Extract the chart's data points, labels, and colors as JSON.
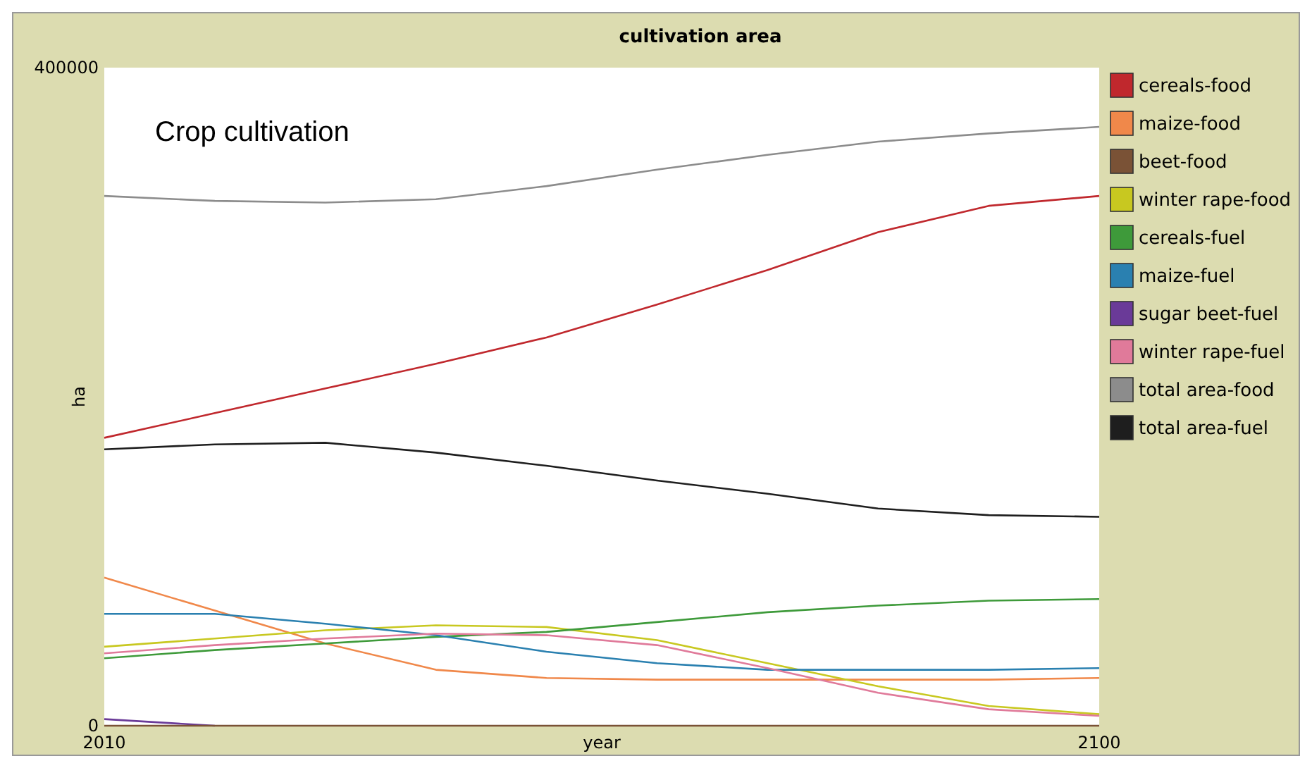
{
  "chart_data": {
    "type": "line",
    "title": "cultivation area",
    "xlabel": "year",
    "ylabel": "ha",
    "annotations": [
      "Crop cultivation"
    ],
    "x": [
      2010,
      2020,
      2030,
      2040,
      2050,
      2060,
      2070,
      2080,
      2090,
      2100
    ],
    "xlim": [
      2010,
      2100
    ],
    "xticks": [
      2010,
      2100
    ],
    "ylim": [
      0,
      400000
    ],
    "yticks": [
      0,
      400000
    ],
    "grid": false,
    "legend": "right",
    "marker": "none",
    "line_style": "solid",
    "series": [
      {
        "name": "cereals-food",
        "color": "#c0282d",
        "values": [
          175000,
          190000,
          205000,
          220000,
          236000,
          256000,
          277000,
          300000,
          316000,
          322000
        ]
      },
      {
        "name": "maize-food",
        "color": "#f0884a",
        "values": [
          90000,
          70000,
          50000,
          34000,
          29000,
          28000,
          28000,
          28000,
          28000,
          29000
        ]
      },
      {
        "name": "beet-food",
        "color": "#7a5236",
        "values": [
          0,
          0,
          0,
          0,
          0,
          0,
          0,
          0,
          0,
          0
        ]
      },
      {
        "name": "winter rape-food",
        "color": "#c8c820",
        "values": [
          48000,
          53000,
          58000,
          61000,
          60000,
          52000,
          38000,
          24000,
          12000,
          7000
        ]
      },
      {
        "name": "cereals-fuel",
        "color": "#3e9a3a",
        "values": [
          41000,
          46000,
          50000,
          54000,
          57000,
          63000,
          69000,
          73000,
          76000,
          77000
        ]
      },
      {
        "name": "maize-fuel",
        "color": "#2a80b0",
        "values": [
          68000,
          68000,
          62000,
          55000,
          45000,
          38000,
          34000,
          34000,
          34000,
          35000
        ]
      },
      {
        "name": "sugar beet-fuel",
        "color": "#6a3a98",
        "values": [
          4000,
          0,
          null,
          null,
          null,
          null,
          null,
          null,
          null,
          null
        ]
      },
      {
        "name": "winter rape-fuel",
        "color": "#e07a9a",
        "values": [
          44000,
          49000,
          53000,
          56000,
          55000,
          49000,
          35000,
          20000,
          10000,
          6000
        ]
      },
      {
        "name": "total area-food",
        "color": "#8c8c8c",
        "values": [
          322000,
          319000,
          318000,
          320000,
          328000,
          338000,
          347000,
          355000,
          360000,
          364000
        ]
      },
      {
        "name": "total area-fuel",
        "color": "#1e1e1e",
        "values": [
          168000,
          171000,
          172000,
          166000,
          158000,
          149000,
          141000,
          132000,
          128000,
          127000
        ]
      }
    ]
  }
}
